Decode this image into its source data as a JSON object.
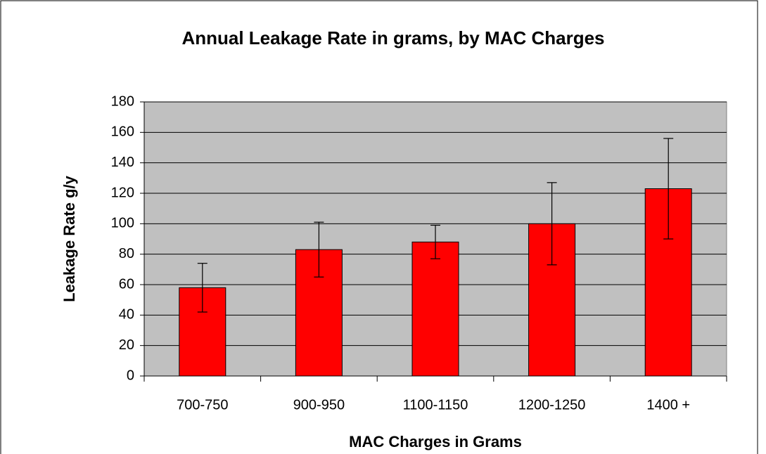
{
  "chart_data": {
    "type": "bar",
    "title": "Annual Leakage Rate in grams, by MAC Charges",
    "x_label": "MAC Charges in Grams",
    "y_label": "Leakage Rate g/y",
    "categories": [
      "700-750",
      "900-950",
      "1100-1150",
      "1200-1250",
      "1400 +"
    ],
    "values": [
      58,
      83,
      88,
      100,
      123
    ],
    "errors": [
      16,
      18,
      11,
      27,
      33
    ],
    "color": "#ff0000",
    "ylim": [
      0,
      180
    ],
    "yticks": [
      0,
      20,
      40,
      60,
      80,
      100,
      120,
      140,
      160,
      180
    ],
    "grid": true
  }
}
